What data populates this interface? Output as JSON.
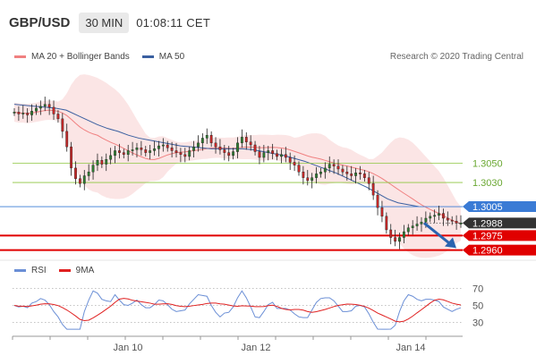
{
  "header": {
    "symbol": "GBP/USD",
    "timeframe": "30 MIN",
    "time": "01:08:11 CET"
  },
  "legend_main": {
    "bb_label": "MA 20 + Bollinger Bands",
    "ma50_label": "MA 50"
  },
  "credit": "Research © 2020 Trading Central",
  "legend_rsi": {
    "rsi_label": "RSI",
    "ma9_label": "9MA"
  },
  "colors": {
    "bb": "#f08080",
    "ma50": "#3a5fa0",
    "rsi": "#6b8fd6",
    "ma9": "#e02020",
    "support": "#e00000",
    "resistance": "#8cc63f",
    "pivot": "#3a7bd5",
    "price": "#333333",
    "arrow": "#2a64b0",
    "candle_up": "#2e7d32",
    "candle_down": "#c62828"
  },
  "chart_data": [
    {
      "type": "candlestick",
      "title": "GBP/USD 30 MIN",
      "x_ticks": [
        "Jan 10",
        "Jan 12",
        "Jan 14"
      ],
      "ylim": [
        1.2955,
        1.3145
      ],
      "levels": [
        {
          "value": 1.305,
          "label": "1.3050",
          "kind": "resistance"
        },
        {
          "value": 1.303,
          "label": "1.3030",
          "kind": "resistance"
        },
        {
          "value": 1.3005,
          "label": "1.3005",
          "kind": "pivot"
        },
        {
          "value": 1.2988,
          "label": "1.2988",
          "kind": "price"
        },
        {
          "value": 1.2975,
          "label": "1.2975",
          "kind": "support"
        },
        {
          "value": 1.296,
          "label": "1.2960",
          "kind": "support"
        }
      ],
      "close_series": [
        1.3103,
        1.3101,
        1.3102,
        1.31,
        1.3104,
        1.3107,
        1.3109,
        1.3111,
        1.3108,
        1.3101,
        1.3096,
        1.3083,
        1.3067,
        1.3045,
        1.3034,
        1.3029,
        1.3037,
        1.3041,
        1.3048,
        1.3053,
        1.3049,
        1.3054,
        1.3058,
        1.3063,
        1.3061,
        1.3059,
        1.3063,
        1.3064,
        1.3066,
        1.3064,
        1.3061,
        1.3063,
        1.3065,
        1.3068,
        1.3069,
        1.3066,
        1.3063,
        1.3061,
        1.3059,
        1.3057,
        1.3063,
        1.3067,
        1.3071,
        1.3076,
        1.3079,
        1.3071,
        1.3067,
        1.3064,
        1.3061,
        1.3058,
        1.3062,
        1.3071,
        1.3077,
        1.3072,
        1.3069,
        1.3062,
        1.3056,
        1.3061,
        1.3063,
        1.306,
        1.3057,
        1.3059,
        1.3056,
        1.3051,
        1.3048,
        1.3041,
        1.3035,
        1.3032,
        1.3035,
        1.3039,
        1.3041,
        1.3045,
        1.3049,
        1.3047,
        1.3044,
        1.3041,
        1.3039,
        1.3037,
        1.304,
        1.3039,
        1.3035,
        1.3029,
        1.3017,
        1.3004,
        1.2995,
        1.2981,
        1.2973,
        1.2969,
        1.2973,
        1.2979,
        1.2983,
        1.2985,
        1.2987,
        1.2989,
        1.2993,
        1.2995,
        1.2996,
        1.2998,
        1.2993,
        1.2991,
        1.299,
        1.2988,
        1.2988
      ],
      "ma50": [
        1.3111,
        1.311,
        1.3109,
        1.3108,
        1.3107,
        1.3105,
        1.31,
        1.3095,
        1.309,
        1.3086,
        1.3083,
        1.3079,
        1.3076,
        1.3074,
        1.3072,
        1.307,
        1.3068,
        1.3067,
        1.3066,
        1.3065,
        1.3065,
        1.3065,
        1.3065,
        1.3064,
        1.3062,
        1.306,
        1.3058,
        1.3055,
        1.3052,
        1.3048,
        1.3044,
        1.304,
        1.3035,
        1.303,
        1.3025,
        1.3019,
        1.3013,
        1.3009,
        1.3007,
        1.3005
      ],
      "rsi_panel": {
        "ticks": [
          70,
          50,
          30
        ]
      }
    }
  ]
}
